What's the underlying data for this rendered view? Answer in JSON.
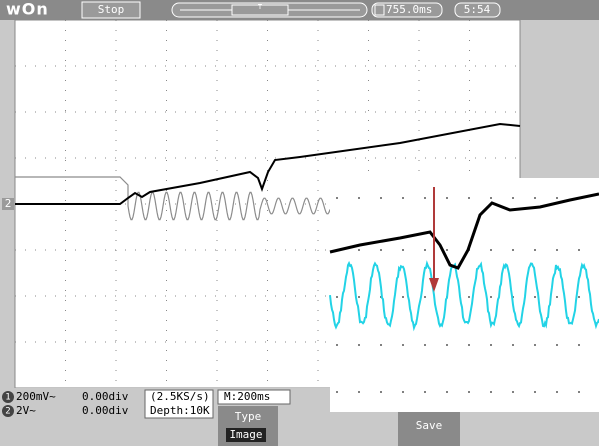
{
  "header": {
    "logo": "wOn",
    "status": "Stop",
    "trigger_marker": "T",
    "time": "755.0ms",
    "clock": "5:54"
  },
  "channel_marker": "2",
  "status_bar": {
    "ch1_label": "1",
    "ch1_scale": "200mV~",
    "ch1_offset": "0.00div",
    "ch2_label": "2",
    "ch2_scale": "2V~",
    "ch2_offset": "0.00div",
    "sample_rate": "(2.5KS/s)",
    "depth": "Depth:10K",
    "timebase": "M:200ms"
  },
  "menu": {
    "type_label": "Type",
    "type_value": "Image",
    "save": "Save"
  }
}
